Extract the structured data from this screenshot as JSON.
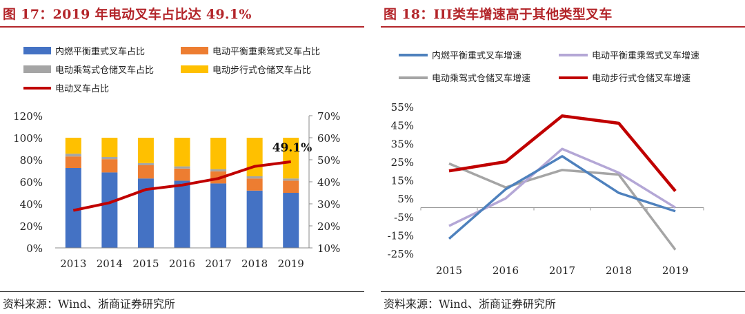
{
  "charts": [
    {
      "title": "图 17：2019 年电动叉车占比达 49.1%",
      "source": "资料来源：Wind、浙商证券研究所",
      "annotation": "49.1%"
    },
    {
      "title": "图 18：III类车增速高于其他类型叉车",
      "source": "资料来源：Wind、浙商证券研究所"
    }
  ],
  "chart_data": [
    {
      "type": "bar",
      "stacked": true,
      "categories": [
        "2013",
        "2014",
        "2015",
        "2016",
        "2017",
        "2018",
        "2019"
      ],
      "series": [
        {
          "name": "内燃平衡重式叉车占比",
          "color": "#4472c4",
          "axis": "left",
          "values": [
            72.5,
            68.5,
            63,
            61,
            58.5,
            52,
            50
          ]
        },
        {
          "name": "电动平衡重乘驾式叉车占比",
          "color": "#ed7d31",
          "axis": "left",
          "values": [
            10.5,
            12,
            12,
            11,
            11,
            11,
            11
          ]
        },
        {
          "name": "电动乘驾式仓储叉车占比",
          "color": "#a5a5a5",
          "axis": "left",
          "values": [
            2.5,
            2,
            2,
            2,
            2,
            2,
            2
          ]
        },
        {
          "name": "电动步行式仓储叉车占比",
          "color": "#ffc000",
          "axis": "left",
          "values": [
            14.5,
            17.5,
            23,
            26,
            28.5,
            35,
            37
          ]
        },
        {
          "name": "电动叉车占比",
          "color": "#c00000",
          "axis": "right",
          "type": "line",
          "values": [
            27,
            30.5,
            36.5,
            38.5,
            41.5,
            47,
            49.1
          ]
        }
      ],
      "left_axis": {
        "ticks": [
          "0%",
          "20%",
          "40%",
          "60%",
          "80%",
          "100%",
          "120%"
        ],
        "ylim": [
          0,
          120
        ]
      },
      "right_axis": {
        "ticks": [
          "10%",
          "20%",
          "30%",
          "40%",
          "50%",
          "60%",
          "70%"
        ],
        "ylim": [
          10,
          70
        ]
      },
      "grid": false,
      "legend": "top"
    },
    {
      "type": "line",
      "categories": [
        "2015",
        "2016",
        "2017",
        "2018",
        "2019"
      ],
      "series": [
        {
          "name": "内燃平衡重式叉车增速",
          "color": "#4e81bd",
          "values": [
            -17,
            10,
            28,
            8,
            -2
          ]
        },
        {
          "name": "电动平衡重乘驾式叉车增速",
          "color": "#b4a7d6",
          "values": [
            -10,
            5,
            32,
            19,
            0
          ]
        },
        {
          "name": "电动乘驾式仓储叉车增速",
          "color": "#a5a5a5",
          "values": [
            24,
            11,
            20.5,
            18,
            -23
          ]
        },
        {
          "name": "电动步行式仓储叉车增速",
          "color": "#c00000",
          "values": [
            20,
            25,
            50,
            46,
            9
          ]
        }
      ],
      "y_axis": {
        "ticks": [
          "-25%",
          "-15%",
          "-5%",
          "5%",
          "15%",
          "25%",
          "35%",
          "45%",
          "55%"
        ],
        "ylim": [
          -25,
          55
        ]
      },
      "grid": false,
      "legend": "top"
    }
  ]
}
